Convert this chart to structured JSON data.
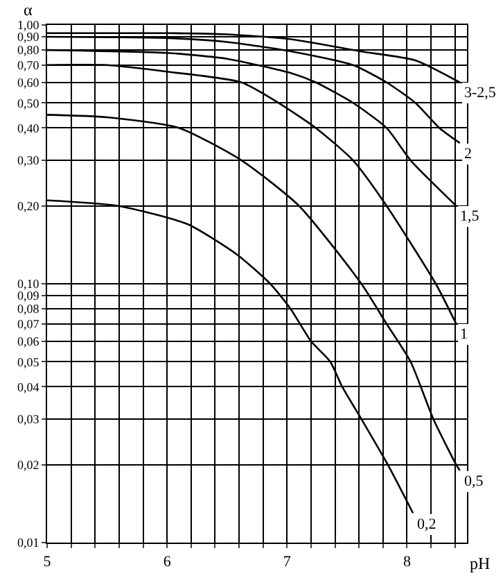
{
  "chart_data": {
    "type": "line",
    "xlabel": "pH",
    "ylabel": "α",
    "xlim": [
      5,
      8.5
    ],
    "ylim": [
      0.01,
      1.0
    ],
    "log": "y",
    "grid": true,
    "legend": false,
    "marker": "none",
    "line_style": "solid",
    "xticks": [
      5,
      {
        "value": 5.2,
        "label": null
      },
      {
        "value": 5.4,
        "label": null
      },
      {
        "value": 5.6,
        "label": null
      },
      {
        "value": 5.8,
        "label": null
      },
      6,
      {
        "value": 6.2,
        "label": null
      },
      {
        "value": 6.4,
        "label": null
      },
      {
        "value": 6.6,
        "label": null
      },
      {
        "value": 6.8,
        "label": null
      },
      7,
      {
        "value": 7.2,
        "label": null
      },
      {
        "value": 7.4,
        "label": null
      },
      {
        "value": 7.6,
        "label": null
      },
      {
        "value": 7.8,
        "label": null
      },
      8,
      {
        "value": 8.2,
        "label": null
      },
      {
        "value": 8.4,
        "label": null
      }
    ],
    "yticks": [
      {
        "value": 0.01,
        "label": "0,01"
      },
      {
        "value": 0.02,
        "label": "0,02"
      },
      {
        "value": 0.03,
        "label": "0,03"
      },
      {
        "value": 0.04,
        "label": "0,04"
      },
      {
        "value": 0.05,
        "label": "0,05"
      },
      {
        "value": 0.06,
        "label": "0,06"
      },
      {
        "value": 0.07,
        "label": "0,07"
      },
      {
        "value": 0.08,
        "label": "0,08"
      },
      {
        "value": 0.09,
        "label": "0,09"
      },
      {
        "value": 0.1,
        "label": "0,10"
      },
      {
        "value": 0.2,
        "label": "0,20"
      },
      {
        "value": 0.3,
        "label": "0,30"
      },
      {
        "value": 0.4,
        "label": "0,40"
      },
      {
        "value": 0.5,
        "label": "0,50"
      },
      {
        "value": 0.6,
        "label": "0,60"
      },
      {
        "value": 0.7,
        "label": "0,70"
      },
      {
        "value": 0.8,
        "label": "0,80"
      },
      {
        "value": 0.9,
        "label": "0,90"
      },
      {
        "value": 1.0,
        "label": "1,00"
      }
    ],
    "series": [
      {
        "name": "3-2,5",
        "color": "#000000",
        "x": [
          5,
          6,
          6.5,
          7.04,
          7.62,
          8.07,
          8.44
        ],
        "values": [
          0.93,
          0.93,
          0.92,
          0.88,
          0.79,
          0.73,
          0.6
        ]
      },
      {
        "name": "2",
        "color": "#000000",
        "x": [
          5,
          6,
          6.5,
          7.04,
          7.55,
          7.83,
          8.07,
          8.27,
          8.44
        ],
        "values": [
          0.9,
          0.89,
          0.86,
          0.79,
          0.7,
          0.6,
          0.5,
          0.4,
          0.35
        ]
      },
      {
        "name": "1,5",
        "color": "#000000",
        "x": [
          5,
          6,
          6.5,
          7.04,
          7.24,
          7.55,
          7.83,
          8.03,
          8.41
        ],
        "values": [
          0.8,
          0.78,
          0.74,
          0.65,
          0.6,
          0.5,
          0.4,
          0.3,
          0.2
        ]
      },
      {
        "name": "1",
        "color": "#000000",
        "x": [
          5,
          5.5,
          6,
          6.62,
          6.93,
          7.24,
          7.55,
          7.83,
          8.24,
          8.41
        ],
        "values": [
          0.7,
          0.7,
          0.66,
          0.6,
          0.5,
          0.4,
          0.3,
          0.2,
          0.1,
          0.07
        ]
      },
      {
        "name": "0,5",
        "color": "#000000",
        "x": [
          5,
          5.5,
          6.1,
          6.62,
          7.1,
          7.62,
          7.83,
          8.03,
          8.22,
          8.41,
          8.44
        ],
        "values": [
          0.45,
          0.44,
          0.4,
          0.3,
          0.2,
          0.1,
          0.07,
          0.05,
          0.03,
          0.02,
          0.019
        ]
      },
      {
        "name": "0,2",
        "color": "#000000",
        "x": [
          5,
          5.59,
          6.17,
          6.58,
          6.86,
          7.03,
          7.2,
          7.36,
          7.46,
          7.62,
          7.84,
          8.05
        ],
        "values": [
          0.21,
          0.2,
          0.17,
          0.13,
          0.1,
          0.08,
          0.06,
          0.05,
          0.04,
          0.03,
          0.02,
          0.013
        ]
      }
    ]
  }
}
